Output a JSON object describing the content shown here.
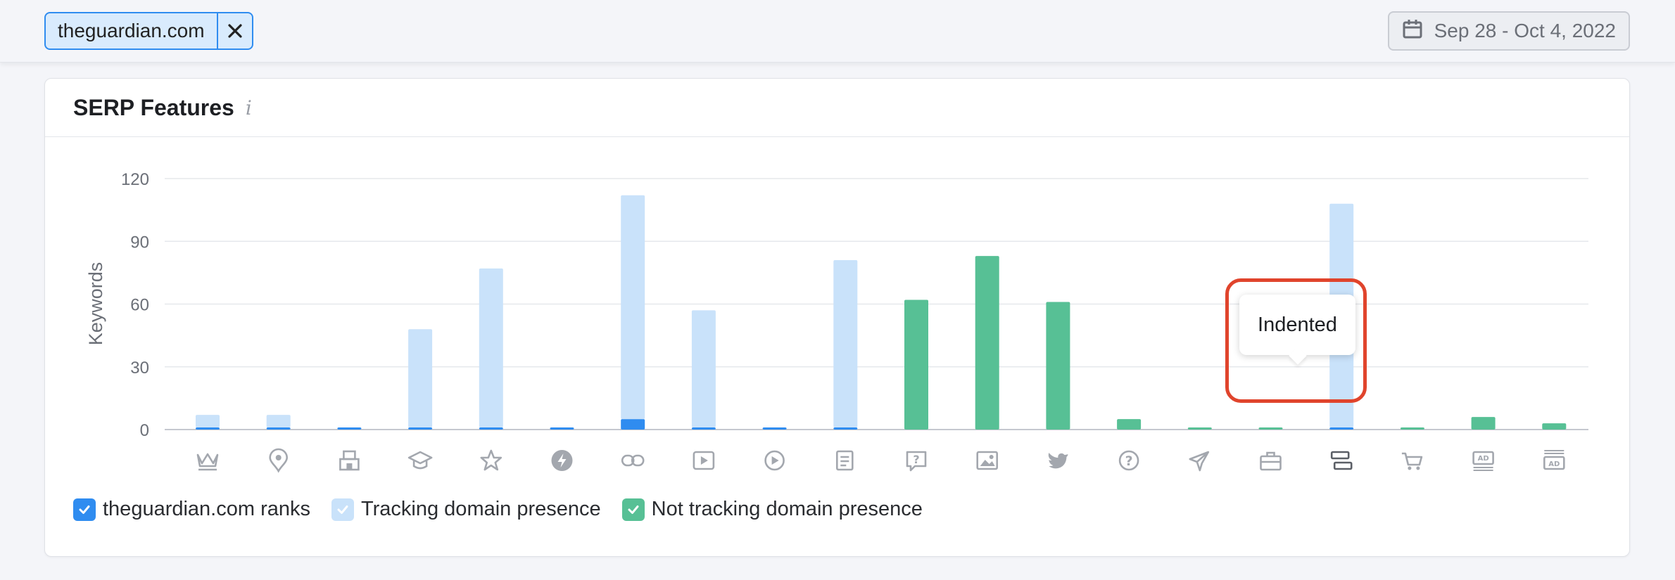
{
  "filter": {
    "domain": "theguardian.com"
  },
  "date_range": {
    "label": "Sep 28 - Oct 4, 2022"
  },
  "card": {
    "title": "SERP Features",
    "info_glyph": "i"
  },
  "tooltip": {
    "text": "Indented"
  },
  "legend": [
    {
      "label": "theguardian.com ranks",
      "color": "#2f8cf0",
      "checked": true
    },
    {
      "label": "Tracking domain presence",
      "color": "#c9e2fa",
      "checked": true
    },
    {
      "label": "Not tracking domain presence",
      "color": "#57c095",
      "checked": true
    }
  ],
  "colors": {
    "ranks": "#2f8cf0",
    "tracking": "#c9e2fa",
    "not_tracking": "#57c095",
    "axis_text": "#6b6f77",
    "icon": "#a3a7ae",
    "highlight": "#e0442c"
  },
  "chart_data": {
    "type": "bar",
    "stacked": true,
    "ylabel": "Keywords",
    "ylim": [
      0,
      120
    ],
    "yticks": [
      0,
      30,
      60,
      90,
      120
    ],
    "grid": true,
    "legend_position": "bottom-left",
    "categories": [
      "crown-icon",
      "location-pin-icon",
      "local-pack-icon",
      "graduation-cap-icon",
      "star-icon",
      "lightning-icon",
      "link-icon",
      "video-icon",
      "play-circle-icon",
      "news-icon",
      "question-bubble-icon",
      "image-icon",
      "twitter-icon",
      "question-circle-icon",
      "airplane-icon",
      "briefcase-icon",
      "indented-icon",
      "shopping-cart-icon",
      "ad-top-icon",
      "ad-bottom-icon"
    ],
    "series": [
      {
        "name": "theguardian.com ranks",
        "values": [
          1,
          1,
          1,
          1,
          1,
          1,
          5,
          1,
          1,
          1,
          0,
          0,
          0,
          0,
          0,
          0,
          1,
          0,
          0,
          0
        ]
      },
      {
        "name": "Tracking domain presence",
        "values": [
          6,
          6,
          0,
          47,
          76,
          0,
          107,
          56,
          0,
          80,
          0,
          0,
          0,
          0,
          0,
          0,
          107,
          0,
          0,
          0
        ]
      },
      {
        "name": "Not tracking domain presence",
        "values": [
          0,
          0,
          0,
          0,
          0,
          0,
          0,
          0,
          0,
          0,
          62,
          83,
          61,
          5,
          1,
          1,
          0,
          1,
          6,
          3
        ]
      }
    ]
  }
}
